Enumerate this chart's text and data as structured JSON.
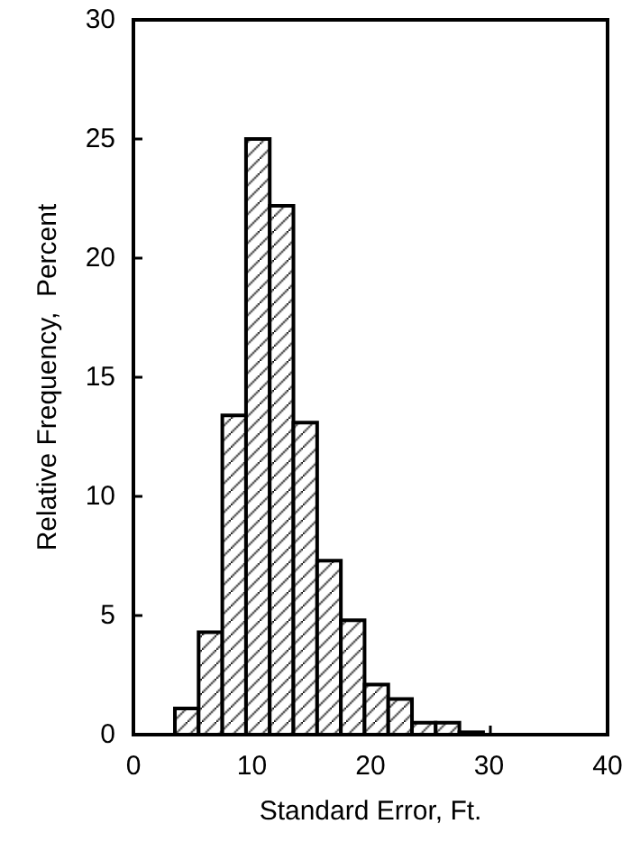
{
  "chart_data": {
    "type": "histogram",
    "xlabel": "Standard Error, Ft.",
    "ylabel": "Relative Frequency,  Percent",
    "bins": [
      3.5,
      5.5,
      7.5,
      9.5,
      11.5,
      13.5,
      15.5,
      17.5,
      19.5,
      21.5,
      23.5,
      25.5,
      27.5,
      29.5
    ],
    "values": [
      1.1,
      4.3,
      13.4,
      25.0,
      22.2,
      13.1,
      7.3,
      4.8,
      2.1,
      1.5,
      0.5,
      0.5,
      0.1
    ],
    "color": "#000000",
    "xlim": [
      0,
      40
    ],
    "xticks": [
      0,
      10,
      20,
      30,
      40
    ],
    "ylim": [
      0,
      30
    ],
    "yticks": [
      0,
      5,
      10,
      15,
      20,
      25,
      30
    ],
    "grid": false
  }
}
